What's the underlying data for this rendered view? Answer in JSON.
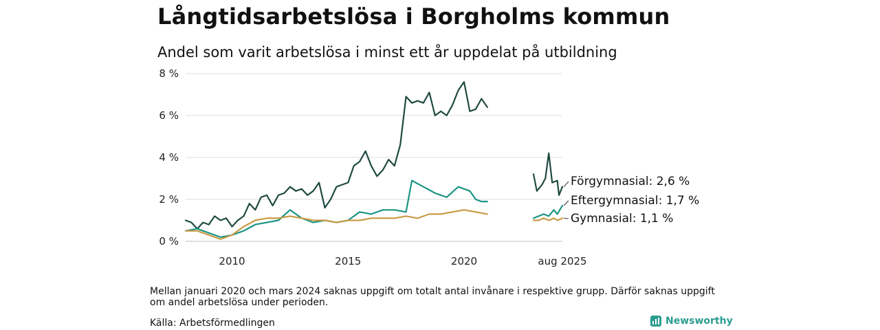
{
  "header": {
    "title": "Långtidsarbetslösa i Borgholms kommun",
    "subtitle": "Andel som varit arbetslösa i minst ett år uppdelat på utbildning"
  },
  "footer": {
    "note": "Mellan januari 2020 och mars 2024 saknas uppgift om totalt antal invånare i respektive grupp. Därför saknas uppgift om andel arbetslösa under perioden.",
    "source": "Källa: Arbetsförmedlingen",
    "brand": "Newsworthy",
    "brand_icon": "newsworthy-logo-icon",
    "brand_color": "#2a9d8f"
  },
  "chart_data": {
    "type": "line",
    "y_unit": "%",
    "ylim": [
      0,
      8
    ],
    "y_ticks": [
      0,
      2,
      4,
      6,
      8
    ],
    "y_tick_labels": [
      "0 %",
      "2 %",
      "4 %",
      "6 %",
      "8 %"
    ],
    "x_tick_labels": [
      {
        "date": "2010-01",
        "label": "2010"
      },
      {
        "date": "2015-01",
        "label": "2015"
      },
      {
        "date": "2020-01",
        "label": "2020"
      },
      {
        "date": "2025-08",
        "label": "aug 2025"
      }
    ],
    "grid": true,
    "gap": [
      "2020-01",
      "2024-03"
    ],
    "series": [
      {
        "name": "Förgymnasial",
        "label": "Förgymnasial: 2,6 %",
        "color": "#1e4a40",
        "points": [
          [
            "2008-01",
            1.0
          ],
          [
            "2008-04",
            0.9
          ],
          [
            "2008-07",
            0.6
          ],
          [
            "2008-10",
            0.9
          ],
          [
            "2009-01",
            0.8
          ],
          [
            "2009-04",
            1.2
          ],
          [
            "2009-07",
            1.0
          ],
          [
            "2009-10",
            1.1
          ],
          [
            "2010-01",
            0.7
          ],
          [
            "2010-04",
            1.0
          ],
          [
            "2010-07",
            1.2
          ],
          [
            "2010-10",
            1.8
          ],
          [
            "2011-01",
            1.5
          ],
          [
            "2011-04",
            2.1
          ],
          [
            "2011-07",
            2.2
          ],
          [
            "2011-10",
            1.7
          ],
          [
            "2012-01",
            2.2
          ],
          [
            "2012-04",
            2.3
          ],
          [
            "2012-07",
            2.6
          ],
          [
            "2012-10",
            2.4
          ],
          [
            "2013-01",
            2.5
          ],
          [
            "2013-04",
            2.2
          ],
          [
            "2013-07",
            2.4
          ],
          [
            "2013-10",
            2.8
          ],
          [
            "2014-01",
            1.6
          ],
          [
            "2014-04",
            2.0
          ],
          [
            "2014-07",
            2.6
          ],
          [
            "2014-10",
            2.7
          ],
          [
            "2015-01",
            2.8
          ],
          [
            "2015-04",
            3.6
          ],
          [
            "2015-07",
            3.8
          ],
          [
            "2015-10",
            4.3
          ],
          [
            "2016-01",
            3.6
          ],
          [
            "2016-04",
            3.1
          ],
          [
            "2016-07",
            3.4
          ],
          [
            "2016-10",
            3.9
          ],
          [
            "2017-01",
            3.6
          ],
          [
            "2017-04",
            4.6
          ],
          [
            "2017-07",
            6.9
          ],
          [
            "2017-10",
            6.6
          ],
          [
            "2018-01",
            6.7
          ],
          [
            "2018-04",
            6.6
          ],
          [
            "2018-07",
            7.1
          ],
          [
            "2018-10",
            6.0
          ],
          [
            "2019-01",
            6.2
          ],
          [
            "2019-04",
            6.0
          ],
          [
            "2019-07",
            6.5
          ],
          [
            "2019-10",
            7.2
          ],
          [
            "2020-01",
            7.6
          ],
          [
            "2020-04",
            6.2
          ],
          [
            "2020-07",
            6.3
          ],
          [
            "2020-10",
            6.8
          ],
          [
            "2021-01",
            6.4
          ],
          null,
          [
            "2024-03",
            3.2
          ],
          [
            "2024-05",
            2.4
          ],
          [
            "2024-08",
            2.7
          ],
          [
            "2024-10",
            3.0
          ],
          [
            "2024-12",
            4.2
          ],
          [
            "2025-02",
            2.8
          ],
          [
            "2025-05",
            2.9
          ],
          [
            "2025-06",
            2.2
          ],
          [
            "2025-08",
            2.6
          ]
        ]
      },
      {
        "name": "Eftergymnasial",
        "label": "Eftergymnasial: 1,7 %",
        "color": "#1a9482",
        "points": [
          [
            "2008-01",
            0.5
          ],
          [
            "2008-07",
            0.6
          ],
          [
            "2009-01",
            0.4
          ],
          [
            "2009-07",
            0.2
          ],
          [
            "2010-01",
            0.3
          ],
          [
            "2010-07",
            0.5
          ],
          [
            "2011-01",
            0.8
          ],
          [
            "2011-07",
            0.9
          ],
          [
            "2012-01",
            1.0
          ],
          [
            "2012-07",
            1.5
          ],
          [
            "2013-01",
            1.1
          ],
          [
            "2013-07",
            0.9
          ],
          [
            "2014-01",
            1.0
          ],
          [
            "2014-07",
            0.9
          ],
          [
            "2015-01",
            1.0
          ],
          [
            "2015-07",
            1.4
          ],
          [
            "2016-01",
            1.3
          ],
          [
            "2016-07",
            1.5
          ],
          [
            "2017-01",
            1.5
          ],
          [
            "2017-07",
            1.4
          ],
          [
            "2017-10",
            2.9
          ],
          [
            "2018-04",
            2.6
          ],
          [
            "2018-10",
            2.3
          ],
          [
            "2019-04",
            2.1
          ],
          [
            "2019-10",
            2.6
          ],
          [
            "2020-04",
            2.4
          ],
          [
            "2020-07",
            2.0
          ],
          [
            "2020-10",
            1.9
          ],
          [
            "2021-01",
            1.9
          ],
          null,
          [
            "2024-03",
            1.1
          ],
          [
            "2024-06",
            1.2
          ],
          [
            "2024-09",
            1.3
          ],
          [
            "2024-12",
            1.2
          ],
          [
            "2025-03",
            1.5
          ],
          [
            "2025-05",
            1.3
          ],
          [
            "2025-08",
            1.7
          ]
        ]
      },
      {
        "name": "Gymnasial",
        "label": "Gymnasial: 1,1 %",
        "color": "#c99a45",
        "points": [
          [
            "2008-01",
            0.5
          ],
          [
            "2008-07",
            0.5
          ],
          [
            "2009-01",
            0.3
          ],
          [
            "2009-07",
            0.1
          ],
          [
            "2010-01",
            0.3
          ],
          [
            "2010-07",
            0.7
          ],
          [
            "2011-01",
            1.0
          ],
          [
            "2011-07",
            1.1
          ],
          [
            "2012-01",
            1.1
          ],
          [
            "2012-07",
            1.2
          ],
          [
            "2013-01",
            1.1
          ],
          [
            "2013-07",
            1.0
          ],
          [
            "2014-01",
            1.0
          ],
          [
            "2014-07",
            0.9
          ],
          [
            "2015-01",
            1.0
          ],
          [
            "2015-07",
            1.0
          ],
          [
            "2016-01",
            1.1
          ],
          [
            "2016-07",
            1.1
          ],
          [
            "2017-01",
            1.1
          ],
          [
            "2017-07",
            1.2
          ],
          [
            "2018-01",
            1.1
          ],
          [
            "2018-07",
            1.3
          ],
          [
            "2019-01",
            1.3
          ],
          [
            "2019-07",
            1.4
          ],
          [
            "2020-01",
            1.5
          ],
          [
            "2020-07",
            1.4
          ],
          [
            "2021-01",
            1.3
          ],
          null,
          [
            "2024-03",
            1.0
          ],
          [
            "2024-06",
            1.0
          ],
          [
            "2024-09",
            1.1
          ],
          [
            "2024-12",
            1.0
          ],
          [
            "2025-03",
            1.1
          ],
          [
            "2025-05",
            1.0
          ],
          [
            "2025-08",
            1.1
          ]
        ]
      }
    ]
  }
}
